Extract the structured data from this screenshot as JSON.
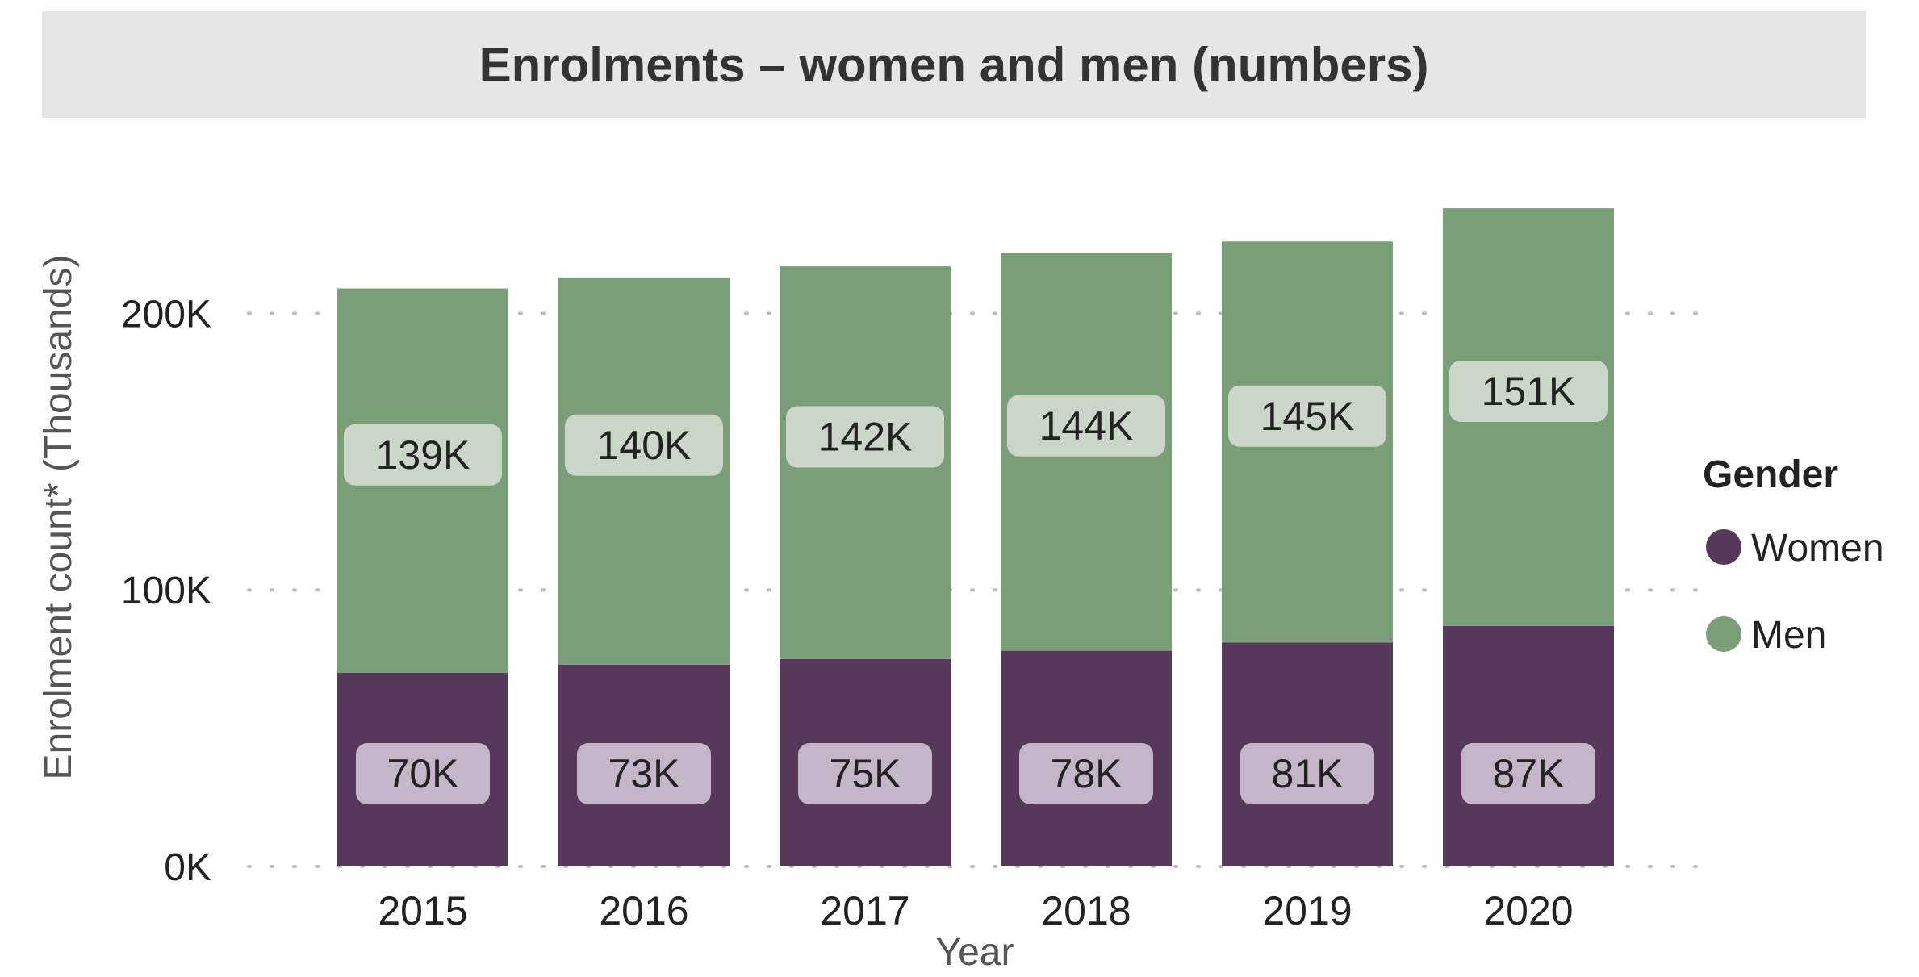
{
  "chart_data": {
    "type": "bar",
    "stacked": true,
    "title": "Enrolments – women and men (numbers)",
    "xlabel": "Year",
    "ylabel": "Enrolment count* (Thousands)",
    "categories": [
      "2015",
      "2016",
      "2017",
      "2018",
      "2019",
      "2020"
    ],
    "series": [
      {
        "name": "Women",
        "values": [
          70,
          73,
          75,
          78,
          81,
          87
        ],
        "labels": [
          "70K",
          "73K",
          "75K",
          "78K",
          "81K",
          "87K"
        ],
        "color": "#55385a",
        "label_bg": "#c5b5c9"
      },
      {
        "name": "Men",
        "values": [
          139,
          140,
          142,
          144,
          145,
          151
        ],
        "labels": [
          "139K",
          "140K",
          "142K",
          "144K",
          "145K",
          "151K"
        ],
        "color": "#7a9e78",
        "label_bg": "#cad6c8"
      }
    ],
    "y_ticks": [
      0,
      100,
      200
    ],
    "y_tick_labels": [
      "0K",
      "100K",
      "200K"
    ],
    "ylim": [
      0,
      245
    ],
    "legend": {
      "title": "Gender",
      "position": "right"
    },
    "grid": "dotted horizontal"
  }
}
